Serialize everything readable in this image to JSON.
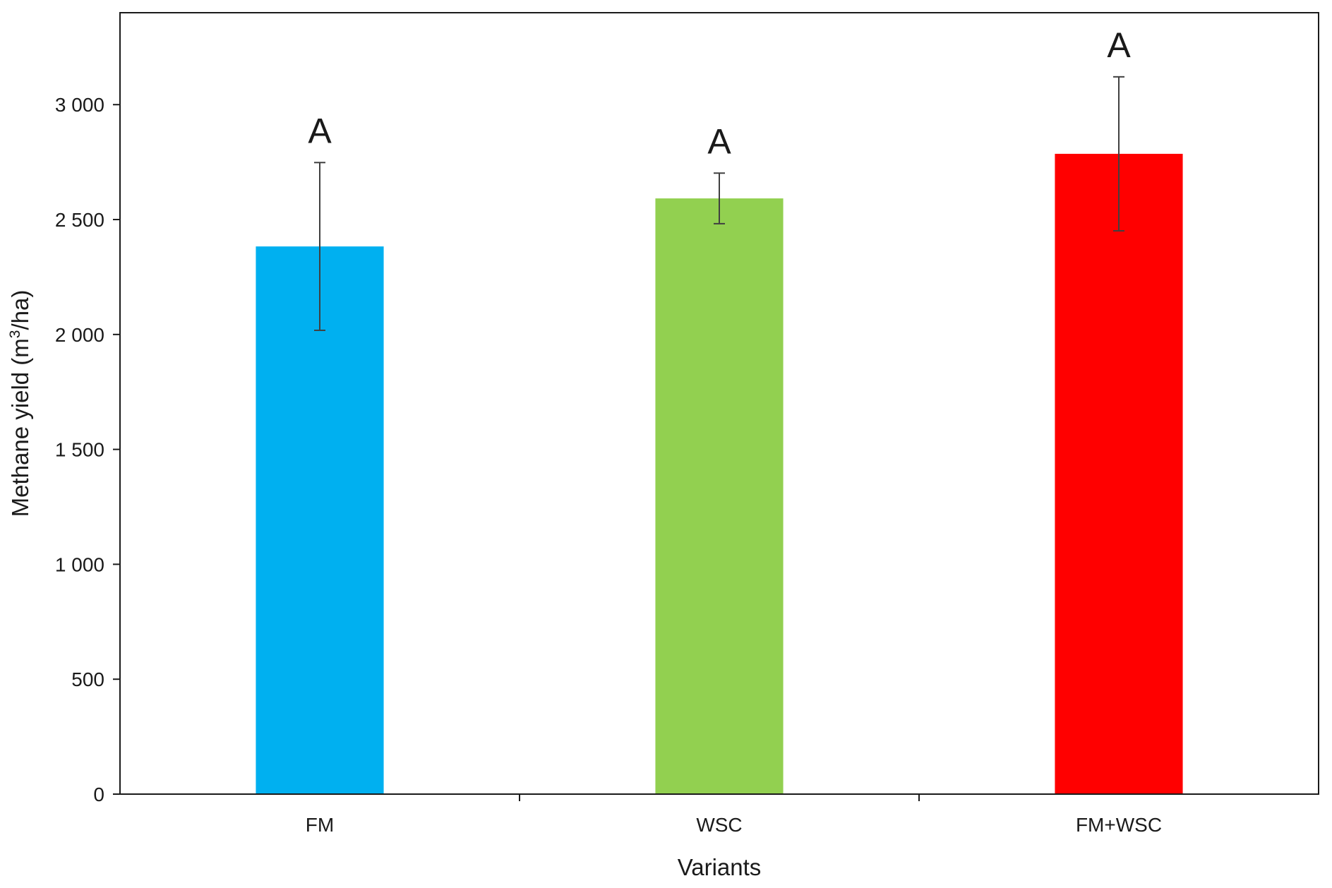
{
  "chart_data": {
    "type": "bar",
    "categories": [
      "FM",
      "WSC",
      "FM+WSC"
    ],
    "values": [
      2383,
      2592,
      2786
    ],
    "error_bars": [
      365,
      110,
      335
    ],
    "significance_labels": [
      "A",
      "A",
      "A"
    ],
    "colors": [
      "#00B0F0",
      "#92D050",
      "#FF0000"
    ],
    "xlabel": "Variants",
    "ylabel": {
      "prefix": "Methane yield (m",
      "superscript": "3",
      "suffix": "/ha)"
    },
    "ylim": [
      0,
      3400
    ],
    "yticks": [
      0,
      500,
      1000,
      1500,
      2000,
      2500,
      3000
    ],
    "ytick_labels": [
      "0",
      "500",
      "1 000",
      "1 500",
      "2 000",
      "2 500",
      "3 000"
    ],
    "grid": false,
    "legend": "none"
  }
}
